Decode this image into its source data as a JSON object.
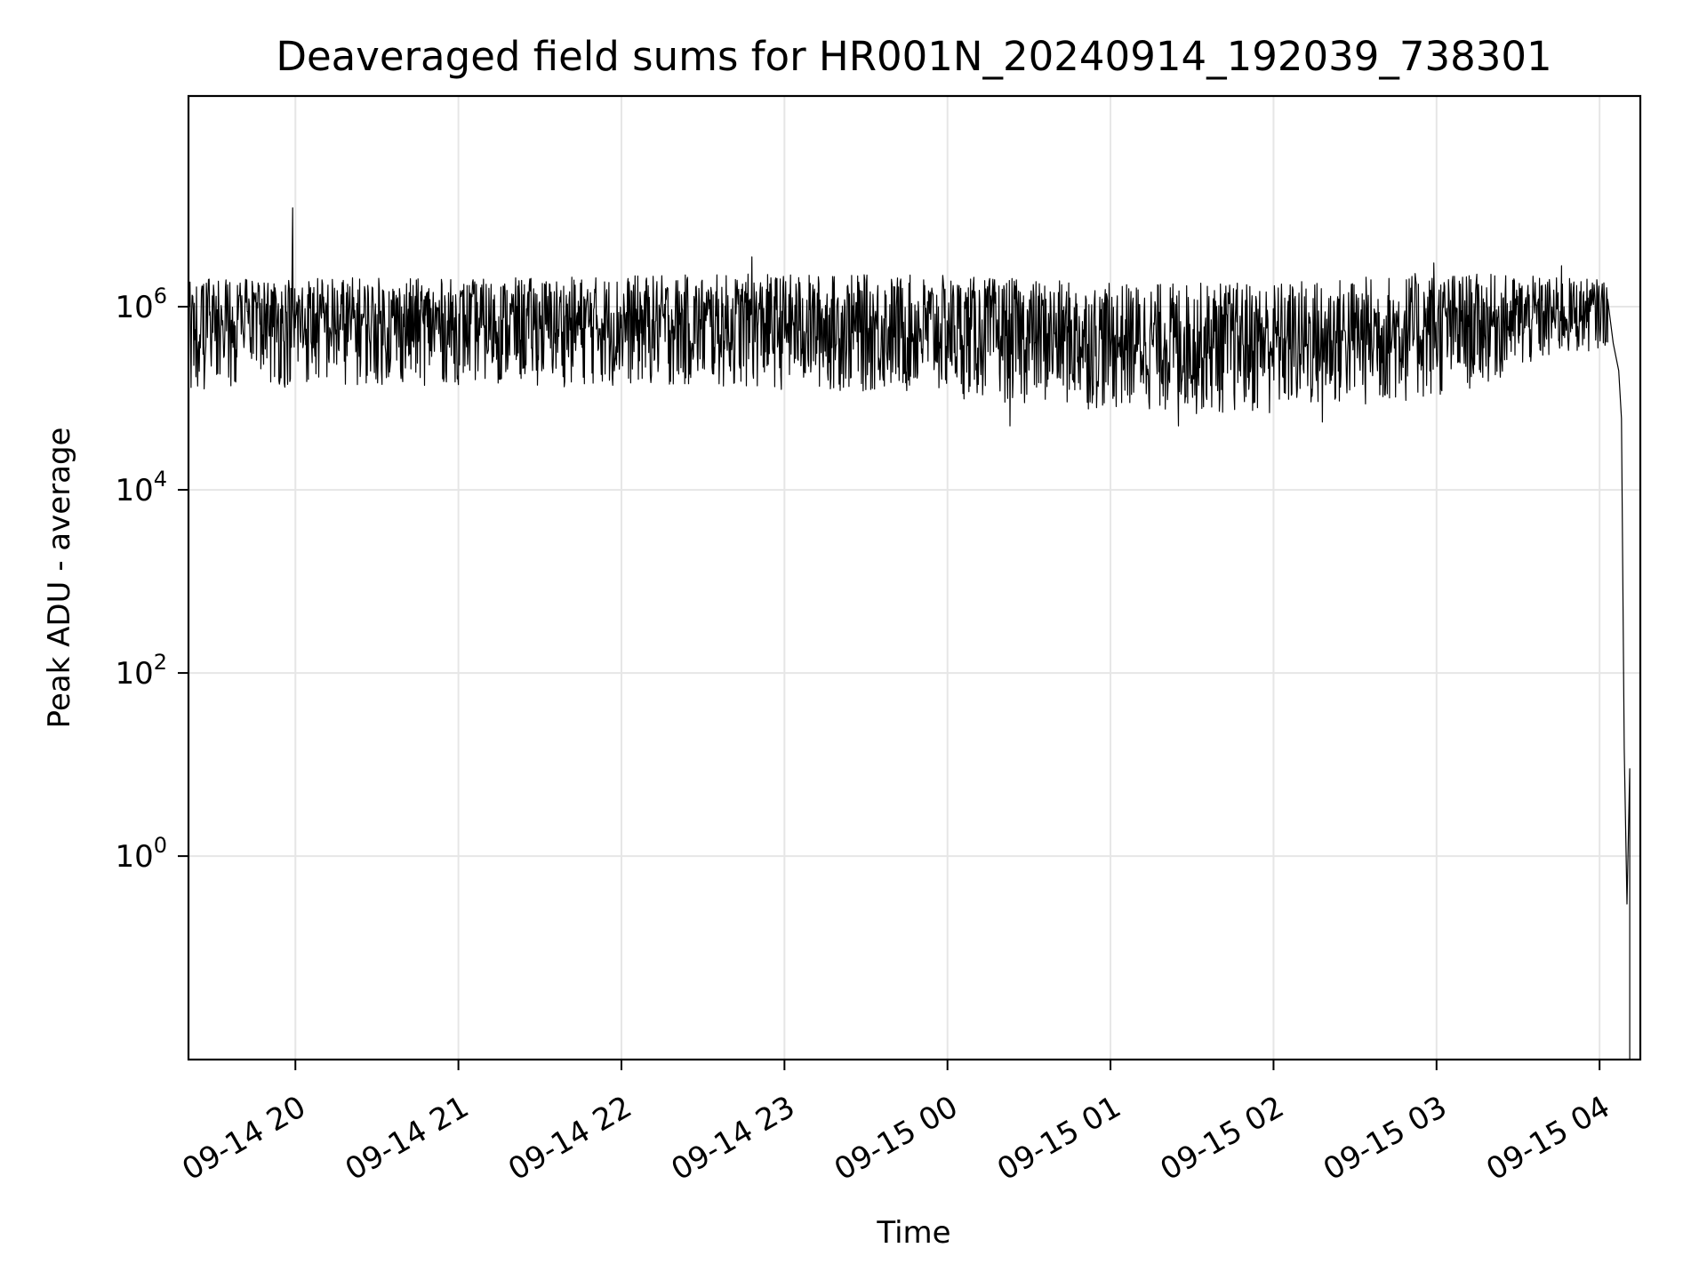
{
  "chart_data": {
    "type": "line",
    "title": "Deaveraged field sums for HR001N_20240914_192039_738301",
    "xlabel": "Time",
    "ylabel": "Peak ADU - average",
    "yscale": "log",
    "grid": true,
    "line_color": "#000000",
    "grid_color": "#e6e6e6",
    "xlim": [
      "2024-09-14 19:20:39",
      "2024-09-15 04:15:00"
    ],
    "ylim": [
      0.006,
      200000000
    ],
    "x_ticks": [
      {
        "time": "2024-09-14 20:00",
        "label": "09-14 20"
      },
      {
        "time": "2024-09-14 21:00",
        "label": "09-14 21"
      },
      {
        "time": "2024-09-14 22:00",
        "label": "09-14 22"
      },
      {
        "time": "2024-09-14 23:00",
        "label": "09-14 23"
      },
      {
        "time": "2024-09-15 00:00",
        "label": "09-15 00"
      },
      {
        "time": "2024-09-15 01:00",
        "label": "09-15 01"
      },
      {
        "time": "2024-09-15 02:00",
        "label": "09-15 02"
      },
      {
        "time": "2024-09-15 03:00",
        "label": "09-15 03"
      },
      {
        "time": "2024-09-15 04:00",
        "label": "09-15 04"
      }
    ],
    "y_ticks": [
      {
        "value": 1,
        "base": "10",
        "exp": "0"
      },
      {
        "value": 100,
        "base": "10",
        "exp": "2"
      },
      {
        "value": 10000,
        "base": "10",
        "exp": "4"
      },
      {
        "value": 1000000,
        "base": "10",
        "exp": "6"
      }
    ],
    "series": [
      {
        "band_profile": [
          {
            "time": "2024-09-14 19:21",
            "low": 120000,
            "high": 2000000
          },
          {
            "time": "2024-09-14 20:00",
            "low": 130000,
            "high": 2200000
          },
          {
            "time": "2024-09-14 21:00",
            "low": 140000,
            "high": 2000000
          },
          {
            "time": "2024-09-14 22:00",
            "low": 130000,
            "high": 2200000
          },
          {
            "time": "2024-09-14 23:00",
            "low": 120000,
            "high": 2300000
          },
          {
            "time": "2024-09-15 00:00",
            "low": 100000,
            "high": 2200000
          },
          {
            "time": "2024-09-15 01:00",
            "low": 70000,
            "high": 1800000
          },
          {
            "time": "2024-09-15 02:00",
            "low": 60000,
            "high": 1900000
          },
          {
            "time": "2024-09-15 03:00",
            "low": 90000,
            "high": 2400000
          },
          {
            "time": "2024-09-15 04:00",
            "low": 350000,
            "high": 2000000
          }
        ],
        "spikes": [
          {
            "time": "2024-09-14 19:59",
            "value": 12000000
          },
          {
            "time": "2024-09-14 22:48",
            "value": 3500000
          },
          {
            "time": "2024-09-15 00:23",
            "value": 50000
          },
          {
            "time": "2024-09-15 01:25",
            "value": 50000
          },
          {
            "time": "2024-09-15 02:18",
            "value": 55000
          },
          {
            "time": "2024-09-15 02:59",
            "value": 3000000
          },
          {
            "time": "2024-09-15 03:46",
            "value": 2800000
          }
        ],
        "tail": [
          {
            "time": "2024-09-15 04:03",
            "value": 1200000
          },
          {
            "time": "2024-09-15 04:05",
            "value": 400000
          },
          {
            "time": "2024-09-15 04:07",
            "value": 200000
          },
          {
            "time": "2024-09-15 04:08",
            "value": 60000
          },
          {
            "time": "2024-09-15 04:09",
            "value": 15
          },
          {
            "time": "2024-09-15 04:10",
            "value": 0.3
          },
          {
            "time": "2024-09-15 04:11",
            "value": 9
          },
          {
            "time": "2024-09-15 04:11",
            "value": 0.006
          }
        ]
      }
    ]
  }
}
